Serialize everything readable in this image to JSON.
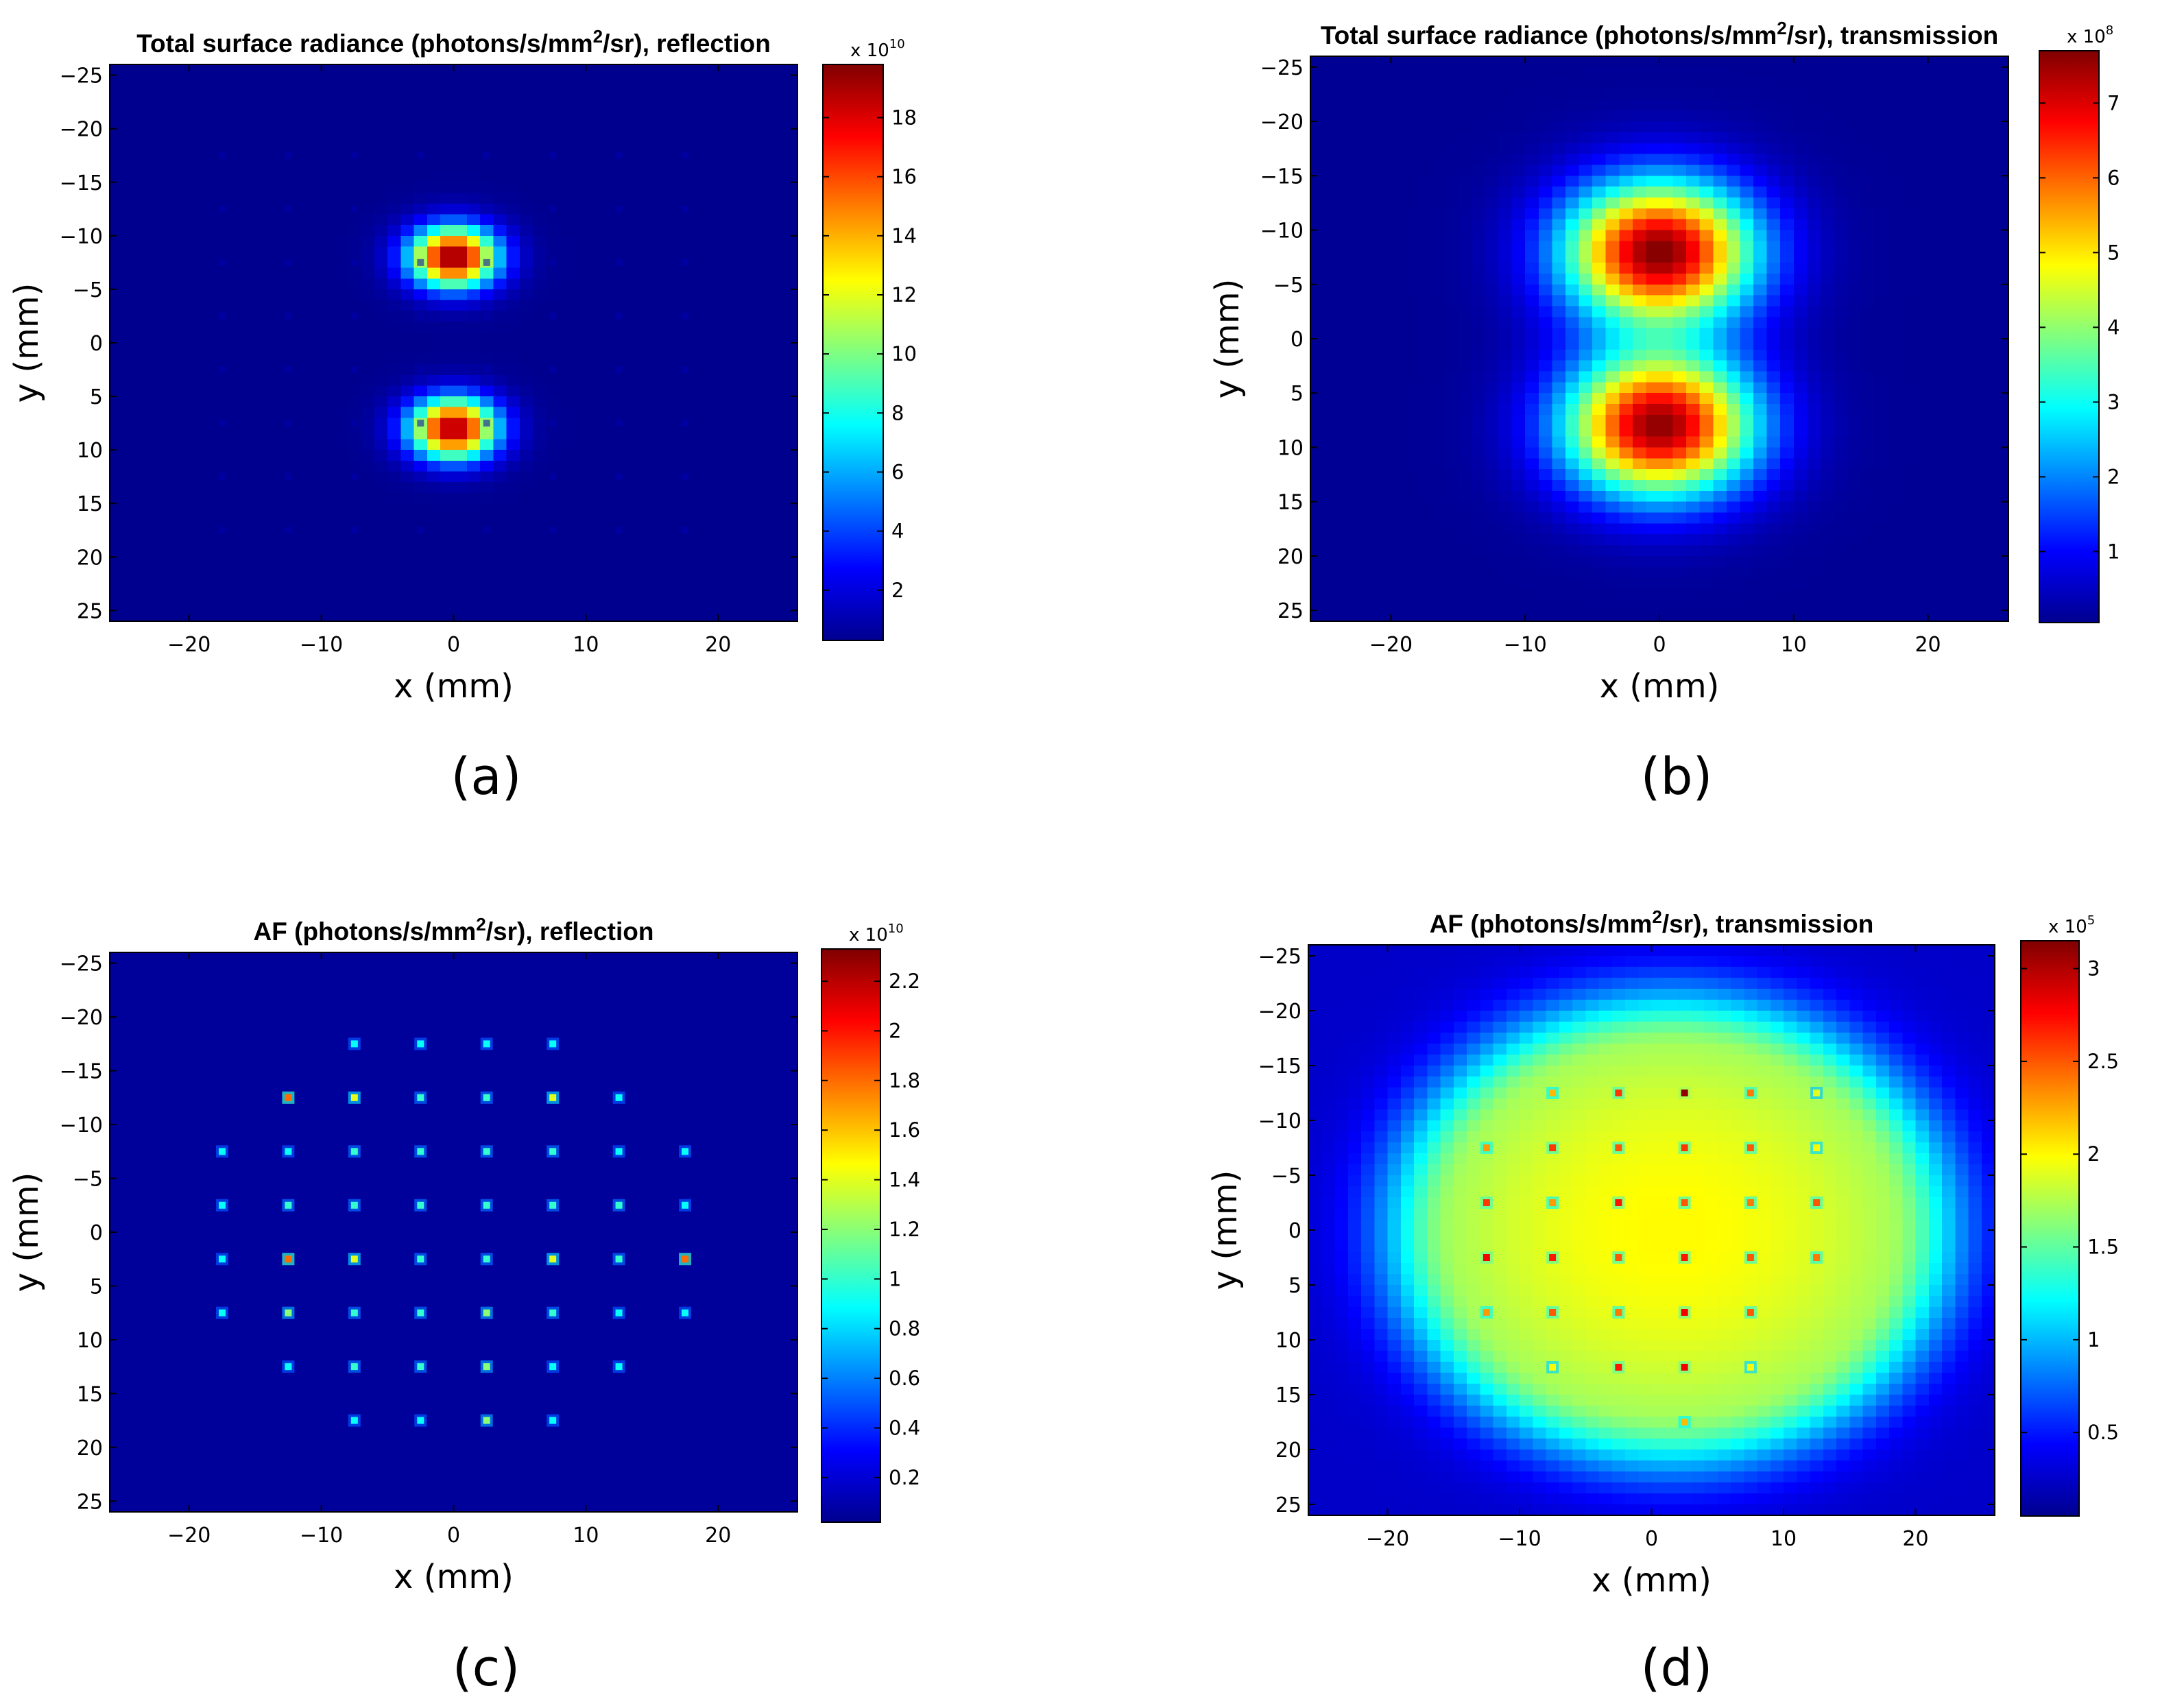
{
  "colors": {
    "jet": [
      "#00008f",
      "#0000ff",
      "#0080ff",
      "#00ffff",
      "#80ff80",
      "#ffff00",
      "#ff8000",
      "#ff0000",
      "#800000"
    ],
    "axis": "#000000",
    "background": "#ffffff"
  },
  "chart_data": [
    {
      "type": "heatmap",
      "panel": "(a)",
      "title": "Total surface radiance (photons/s/mm2/sr), reflection",
      "title_parts": {
        "before": "Total surface radiance (photons/s/mm",
        "sup": "2",
        "after": "/sr), reflection"
      },
      "xlabel": "x (mm)",
      "ylabel": "y (mm)",
      "xlim": [
        -26,
        26
      ],
      "ylim": [
        -26,
        26
      ],
      "y_reversed": true,
      "xticks": [
        -20,
        -10,
        0,
        10,
        20
      ],
      "yticks": [
        -25,
        -20,
        -15,
        -10,
        -5,
        0,
        5,
        10,
        15,
        20,
        25
      ],
      "colorbar": {
        "min": 0.3,
        "max": 19.8,
        "ticks": [
          2,
          4,
          6,
          8,
          10,
          12,
          14,
          16,
          18
        ],
        "exponent_base": "x 10",
        "exponent_power": "10"
      },
      "background_value": 0.3,
      "blobs": [
        {
          "x": 0,
          "y": -8,
          "peak": 19.8,
          "sigma_x": 2.3,
          "sigma_y": 2.0
        },
        {
          "x": 0,
          "y": 8,
          "peak": 19.3,
          "sigma_x": 2.3,
          "sigma_y": 2.0
        }
      ],
      "dots": {
        "x": [
          -17.5,
          -12.5,
          -7.5,
          -2.5,
          2.5,
          7.5,
          12.5,
          17.5
        ],
        "y": [
          -17.5,
          -12.5,
          -7.5,
          -2.5,
          2.5,
          7.5,
          12.5,
          17.5
        ],
        "radius": 21,
        "value": 1.0
      }
    },
    {
      "type": "heatmap",
      "panel": "(b)",
      "title": "Total surface radiance (photons/s/mm2/sr), transmission",
      "title_parts": {
        "before": "Total surface radiance (photons/s/mm",
        "sup": "2",
        "after": "/sr), transmission"
      },
      "xlabel": "x (mm)",
      "ylabel": "y (mm)",
      "xlim": [
        -26,
        26
      ],
      "ylim": [
        -26,
        26
      ],
      "y_reversed": true,
      "xticks": [
        -20,
        -10,
        0,
        10,
        20
      ],
      "yticks": [
        -25,
        -20,
        -15,
        -10,
        -5,
        0,
        5,
        10,
        15,
        20,
        25
      ],
      "colorbar": {
        "min": 0.05,
        "max": 7.7,
        "ticks": [
          1,
          2,
          3,
          4,
          5,
          6,
          7
        ],
        "exponent_base": "x 10",
        "exponent_power": "8"
      },
      "background_value": 0.1,
      "blobs": [
        {
          "x": 0,
          "y": -8,
          "peak": 7.7,
          "sigma_x": 5.0,
          "sigma_y": 4.6
        },
        {
          "x": 0,
          "y": 8,
          "peak": 7.6,
          "sigma_x": 5.0,
          "sigma_y": 4.6
        }
      ]
    },
    {
      "type": "heatmap",
      "panel": "(c)",
      "title": "AF (photons/s/mm2/sr), reflection",
      "title_parts": {
        "before": "AF (photons/s/mm",
        "sup": "2",
        "after": "/sr), reflection"
      },
      "xlabel": "x (mm)",
      "ylabel": "y (mm)",
      "xlim": [
        -26,
        26
      ],
      "ylim": [
        -26,
        26
      ],
      "y_reversed": true,
      "xticks": [
        -20,
        -10,
        0,
        10,
        20
      ],
      "yticks": [
        -25,
        -20,
        -15,
        -10,
        -5,
        0,
        5,
        10,
        15,
        20,
        25
      ],
      "colorbar": {
        "min": 0.02,
        "max": 2.33,
        "ticks": [
          0.2,
          0.4,
          0.6,
          0.8,
          1,
          1.2,
          1.4,
          1.6,
          1.8,
          2,
          2.2
        ],
        "exponent_base": "x 10",
        "exponent_power": "10"
      },
      "background_value": 0.05,
      "spots": [
        [
          -7.5,
          -17.5,
          0.9
        ],
        [
          -2.5,
          -17.5,
          0.9
        ],
        [
          2.5,
          -17.5,
          0.9
        ],
        [
          7.5,
          -17.5,
          0.9
        ],
        [
          -12.5,
          -12.5,
          1.8
        ],
        [
          -7.5,
          -12.5,
          1.4
        ],
        [
          -2.5,
          -12.5,
          1.0
        ],
        [
          2.5,
          -12.5,
          1.0
        ],
        [
          7.5,
          -12.5,
          1.4
        ],
        [
          12.5,
          -12.5,
          0.9
        ],
        [
          -17.5,
          -7.5,
          0.9
        ],
        [
          -12.5,
          -7.5,
          0.9
        ],
        [
          -7.5,
          -7.5,
          1.0
        ],
        [
          -2.5,
          -7.5,
          1.0
        ],
        [
          2.5,
          -7.5,
          1.0
        ],
        [
          7.5,
          -7.5,
          1.0
        ],
        [
          12.5,
          -7.5,
          0.9
        ],
        [
          17.5,
          -7.5,
          0.9
        ],
        [
          -17.5,
          -2.5,
          0.9
        ],
        [
          -12.5,
          -2.5,
          1.0
        ],
        [
          -7.5,
          -2.5,
          1.0
        ],
        [
          -2.5,
          -2.5,
          1.0
        ],
        [
          2.5,
          -2.5,
          1.0
        ],
        [
          7.5,
          -2.5,
          1.0
        ],
        [
          12.5,
          -2.5,
          1.0
        ],
        [
          17.5,
          -2.5,
          0.9
        ],
        [
          -17.5,
          2.5,
          0.9
        ],
        [
          -12.5,
          2.5,
          1.8
        ],
        [
          -7.5,
          2.5,
          1.4
        ],
        [
          -2.5,
          2.5,
          1.0
        ],
        [
          2.5,
          2.5,
          1.0
        ],
        [
          7.5,
          2.5,
          1.4
        ],
        [
          12.5,
          2.5,
          1.0
        ],
        [
          17.5,
          2.5,
          1.8
        ],
        [
          -17.5,
          7.5,
          0.9
        ],
        [
          -12.5,
          7.5,
          1.2
        ],
        [
          -7.5,
          7.5,
          1.0
        ],
        [
          -2.5,
          7.5,
          1.0
        ],
        [
          2.5,
          7.5,
          1.2
        ],
        [
          7.5,
          7.5,
          1.0
        ],
        [
          12.5,
          7.5,
          0.9
        ],
        [
          17.5,
          7.5,
          0.9
        ],
        [
          -12.5,
          12.5,
          0.9
        ],
        [
          -7.5,
          12.5,
          1.0
        ],
        [
          -2.5,
          12.5,
          1.0
        ],
        [
          2.5,
          12.5,
          1.2
        ],
        [
          7.5,
          12.5,
          0.9
        ],
        [
          12.5,
          12.5,
          0.9
        ],
        [
          -7.5,
          17.5,
          0.9
        ],
        [
          -2.5,
          17.5,
          0.9
        ],
        [
          2.5,
          17.5,
          1.2
        ],
        [
          7.5,
          17.5,
          0.9
        ]
      ]
    },
    {
      "type": "heatmap",
      "panel": "(d)",
      "title": "AF (photons/s/mm2/sr), transmission",
      "title_parts": {
        "before": "AF (photons/s/mm",
        "sup": "2",
        "after": "/sr), transmission"
      },
      "xlabel": "x (mm)",
      "ylabel": "y (mm)",
      "xlim": [
        -26,
        26
      ],
      "ylim": [
        -26,
        26
      ],
      "y_reversed": true,
      "xticks": [
        -20,
        -10,
        0,
        10,
        20
      ],
      "yticks": [
        -25,
        -20,
        -15,
        -10,
        -5,
        0,
        5,
        10,
        15,
        20,
        25
      ],
      "colorbar": {
        "min": 0.05,
        "max": 3.15,
        "ticks": [
          0.5,
          1,
          1.5,
          2,
          2.5,
          3
        ],
        "exponent_base": "x 10",
        "exponent_power": "5"
      },
      "background_value": 0.25,
      "ellipse": {
        "x": 1.5,
        "y": 0,
        "peak": 2.0,
        "radius_x": 16,
        "radius_y": 16,
        "falloff": 8
      },
      "spots": [
        [
          -2.5,
          -12.5,
          2.6
        ],
        [
          2.5,
          -12.5,
          3.1
        ],
        [
          7.5,
          -12.5,
          2.4
        ],
        [
          -7.5,
          -12.5,
          2.2
        ],
        [
          12.5,
          -12.5,
          1.9
        ],
        [
          -12.5,
          -7.5,
          2.3
        ],
        [
          -7.5,
          -7.5,
          2.6
        ],
        [
          -2.5,
          -7.5,
          2.5
        ],
        [
          2.5,
          -7.5,
          2.6
        ],
        [
          7.5,
          -7.5,
          2.5
        ],
        [
          12.5,
          -7.5,
          2.0
        ],
        [
          -12.5,
          -2.5,
          2.6
        ],
        [
          -7.5,
          -2.5,
          2.3
        ],
        [
          -2.5,
          -2.5,
          2.7
        ],
        [
          2.5,
          -2.5,
          2.5
        ],
        [
          7.5,
          -2.5,
          2.4
        ],
        [
          12.5,
          -2.5,
          2.5
        ],
        [
          -12.5,
          2.5,
          2.8
        ],
        [
          -7.5,
          2.5,
          2.7
        ],
        [
          -2.5,
          2.5,
          2.5
        ],
        [
          2.5,
          2.5,
          2.7
        ],
        [
          7.5,
          2.5,
          2.5
        ],
        [
          12.5,
          2.5,
          2.4
        ],
        [
          -12.5,
          7.5,
          2.3
        ],
        [
          -7.5,
          7.5,
          2.5
        ],
        [
          -2.5,
          7.5,
          2.4
        ],
        [
          2.5,
          7.5,
          2.8
        ],
        [
          7.5,
          7.5,
          2.5
        ],
        [
          -7.5,
          12.5,
          2.0
        ],
        [
          -2.5,
          12.5,
          2.7
        ],
        [
          2.5,
          12.5,
          2.8
        ],
        [
          7.5,
          12.5,
          2.0
        ],
        [
          2.5,
          17.5,
          2.2
        ]
      ]
    }
  ],
  "panels": [
    {
      "id": "a",
      "sub_label": "(a)",
      "layout": {
        "plot": [
          160,
          94,
          1163,
          906
        ],
        "cbar": [
          1200,
          94,
          1288,
          934
        ],
        "sub_label_pos": [
          709,
          1158
        ]
      }
    },
    {
      "id": "b",
      "sub_label": "(b)",
      "layout": {
        "plot": [
          1911,
          82,
          2929,
          906
        ],
        "cbar": [
          2974,
          74,
          3061,
          908
        ],
        "sub_label_pos": [
          2445,
          1158
        ]
      }
    },
    {
      "id": "c",
      "sub_label": "(c)",
      "layout": {
        "plot": [
          160,
          1389,
          1163,
          2205
        ],
        "cbar": [
          1198,
          1384,
          1284,
          2220
        ],
        "sub_label_pos": [
          709,
          2458
        ]
      }
    },
    {
      "id": "d",
      "sub_label": "(d)",
      "layout": {
        "plot": [
          1908,
          1378,
          2909,
          2210
        ],
        "cbar": [
          2947,
          1372,
          3032,
          2211
        ],
        "sub_label_pos": [
          2445,
          2458
        ]
      }
    }
  ]
}
